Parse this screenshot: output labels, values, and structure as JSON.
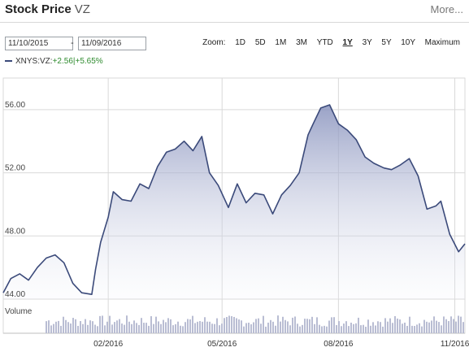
{
  "header": {
    "title": "Stock Price",
    "ticker": "VZ",
    "more_label": "More..."
  },
  "range": {
    "from": "11/10/2015",
    "separator": "-",
    "to": "11/09/2016"
  },
  "zoom": {
    "label": "Zoom:",
    "options": [
      "1D",
      "5D",
      "1M",
      "3M",
      "YTD",
      "1Y",
      "3Y",
      "5Y",
      "10Y",
      "Maximum"
    ],
    "active": "1Y"
  },
  "legend": {
    "symbol": "XNYS:VZ:",
    "change_abs": "+2.56",
    "change_pct": "+5.65%"
  },
  "colors": {
    "line": "#3b4a7a",
    "fill_top": "#8892bd",
    "fill_bottom": "#eef0f7",
    "grid": "#d9d9d9",
    "volume_bar": "#b9bdd3"
  },
  "chart_data": {
    "type": "area",
    "ylim": [
      44,
      58
    ],
    "yticks": [
      44,
      48,
      52,
      56
    ],
    "ytick_labels": [
      "44.00",
      "48.00",
      "52.00",
      "56.00"
    ],
    "xlim": [
      "2015-11-10",
      "2016-11-09"
    ],
    "xticks": [
      "2016-02-01",
      "2016-05-01",
      "2016-08-01",
      "2016-11-01"
    ],
    "xtick_labels": [
      "02/2016",
      "05/2016",
      "08/2016",
      "11/2016"
    ],
    "volume_label": "Volume",
    "series": [
      {
        "x": [
          "2015-11-10",
          "2015-11-16",
          "2015-11-23",
          "2015-11-30",
          "2015-12-07",
          "2015-12-14",
          "2015-12-21",
          "2015-12-28",
          "2016-01-04",
          "2016-01-11",
          "2016-01-19",
          "2016-01-22",
          "2016-01-26",
          "2016-02-01",
          "2016-02-05",
          "2016-02-12",
          "2016-02-19",
          "2016-02-26",
          "2016-03-04",
          "2016-03-11",
          "2016-03-18",
          "2016-03-25",
          "2016-04-01",
          "2016-04-08",
          "2016-04-15",
          "2016-04-21",
          "2016-04-28",
          "2016-05-06",
          "2016-05-13",
          "2016-05-20",
          "2016-05-27",
          "2016-06-03",
          "2016-06-10",
          "2016-06-17",
          "2016-06-24",
          "2016-07-01",
          "2016-07-08",
          "2016-07-12",
          "2016-07-18",
          "2016-07-25",
          "2016-08-01",
          "2016-08-08",
          "2016-08-15",
          "2016-08-22",
          "2016-08-29",
          "2016-09-06",
          "2016-09-12",
          "2016-09-19",
          "2016-09-26",
          "2016-10-03",
          "2016-10-10",
          "2016-10-17",
          "2016-10-21",
          "2016-10-28",
          "2016-11-04",
          "2016-11-09"
        ],
        "y": [
          44.4,
          45.3,
          45.6,
          45.2,
          46.0,
          46.6,
          46.8,
          46.3,
          45.0,
          44.4,
          44.3,
          45.9,
          47.6,
          49.2,
          50.8,
          50.3,
          50.2,
          51.3,
          51.0,
          52.4,
          53.3,
          53.5,
          54.0,
          53.4,
          54.3,
          52.0,
          51.2,
          49.8,
          51.3,
          50.1,
          50.7,
          50.6,
          49.4,
          50.6,
          51.2,
          52.0,
          54.4,
          55.1,
          56.1,
          56.3,
          55.1,
          54.7,
          54.1,
          53.0,
          52.6,
          52.3,
          52.2,
          52.5,
          52.9,
          51.8,
          49.7,
          49.9,
          50.2,
          48.1,
          47.0,
          47.5
        ]
      }
    ]
  }
}
